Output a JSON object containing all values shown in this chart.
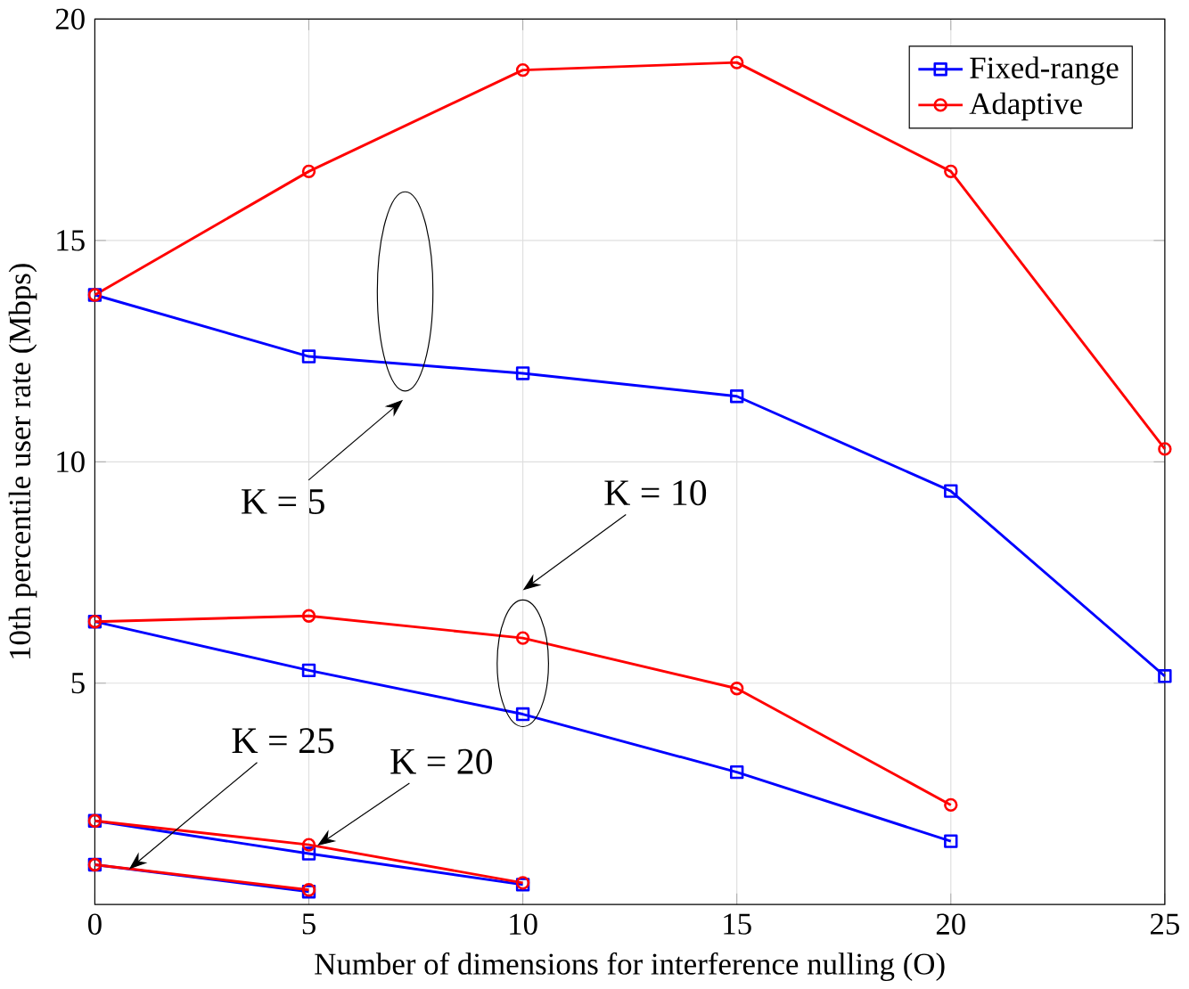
{
  "chart_data": {
    "type": "line",
    "xlabel": "Number of dimensions for interference nulling (O)",
    "ylabel": "10th percentile user rate (Mbps)",
    "xlim": [
      0,
      25
    ],
    "xticks": [
      0,
      5,
      10,
      15,
      20,
      25
    ],
    "ylim": [
      0,
      20
    ],
    "yticks": [
      5,
      10,
      15,
      20
    ],
    "grid": true,
    "legend": "top right",
    "line_style": "solid",
    "series": [
      {
        "name": "Fixed-range",
        "color": "#0000ff",
        "marker": "square",
        "x": [
          0,
          5,
          10,
          15,
          20,
          25
        ],
        "values": [
          13.77,
          12.38,
          12.0,
          11.48,
          9.34,
          5.16
        ]
      },
      {
        "name": "Adaptive",
        "color": "#ff0000",
        "marker": "circle",
        "x": [
          0,
          5,
          10,
          15,
          20,
          25
        ],
        "values": [
          13.77,
          16.56,
          18.85,
          19.02,
          16.56,
          10.29
        ]
      },
      {
        "color": "#0000ff",
        "marker": "square",
        "x": [
          0,
          5,
          10,
          15,
          20
        ],
        "values": [
          6.39,
          5.29,
          4.3,
          2.99,
          1.43
        ]
      },
      {
        "color": "#ff0000",
        "marker": "circle",
        "x": [
          0,
          5,
          10,
          15,
          20
        ],
        "values": [
          6.39,
          6.52,
          6.02,
          4.88,
          2.25
        ]
      },
      {
        "color": "#0000ff",
        "marker": "square",
        "x": [
          0,
          5,
          10
        ],
        "values": [
          1.89,
          1.15,
          0.45
        ]
      },
      {
        "color": "#ff0000",
        "marker": "circle",
        "x": [
          0,
          5,
          10
        ],
        "values": [
          1.89,
          1.35,
          0.49
        ]
      },
      {
        "color": "#0000ff",
        "marker": "square",
        "x": [
          0,
          5
        ],
        "values": [
          0.9,
          0.29
        ]
      },
      {
        "color": "#ff0000",
        "marker": "circle",
        "x": [
          0,
          5
        ],
        "values": [
          0.9,
          0.33
        ]
      }
    ],
    "annotations": [
      "K = 5",
      "K = 10",
      {
        "text": "K = 25",
        "x": 0.8,
        "y": 0.8
      },
      {
        "text": "K = 20",
        "x": 5.2,
        "y": 1.33
      }
    ]
  }
}
